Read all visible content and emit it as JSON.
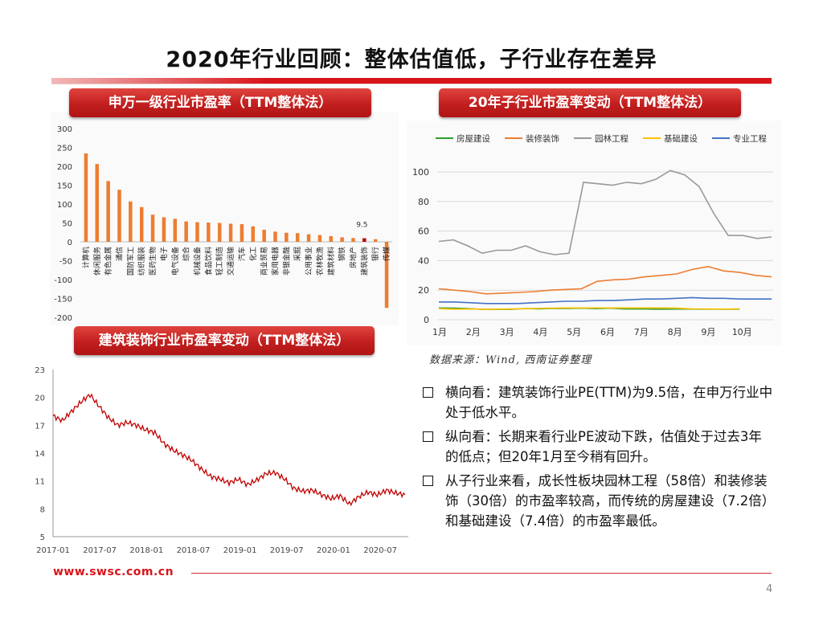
{
  "slide": {
    "title": "2020年行业回顾：整体估值低，子行业存在差异",
    "page_number": "4",
    "footer_url": "www.swsc.com.cn",
    "accent_color": "#d8141b"
  },
  "panels": {
    "industry_pe_label": "申万一级行业市盈率（TTM整体法）",
    "sub_industry_label": "20年子行业市盈率变动（TTM整体法）",
    "construction_pe_label": "建筑装饰行业市盈率变动（TTM整体法）"
  },
  "source_note": "数据来源：Wind, 西南证券整理",
  "bullets": [
    "横向看：建筑装饰行业PE(TTM)为9.5倍，在申万行业中处于低水平。",
    "纵向看：长期来看行业PE波动下跌，估值处于过去3年的低点；但20年1月至今稍有回升。",
    "从子行业来看，成长性板块园林工程（58倍）和装修装饰（30倍）的市盈率较高，而传统的房屋建设（7.2倍）和基础建设（7.4倍）的市盈率最低。"
  ],
  "chart_data": [
    {
      "type": "bar",
      "title": "申万一级行业市盈率（TTM整体法）",
      "categories": [
        "计算机",
        "休闲服务",
        "有色金属",
        "通信",
        "国防军工",
        "纺织服装",
        "医药生物",
        "电子",
        "电气设备",
        "综合",
        "机械设备",
        "食品饮料",
        "轻工制造",
        "交通运输",
        "汽车",
        "化工",
        "商业贸易",
        "家用电器",
        "非银金融",
        "采掘",
        "公用事业",
        "农林牧渔",
        "建筑材料",
        "钢铁",
        "房地产",
        "建筑装饰",
        "银行",
        "传媒"
      ],
      "values": [
        234,
        206,
        161,
        138,
        107,
        92,
        72,
        65,
        61,
        54,
        52,
        51,
        50,
        48,
        47,
        41,
        32,
        27,
        24,
        23,
        20,
        18,
        15,
        12,
        10,
        9.5,
        7,
        -175
      ],
      "highlight_category": "建筑装饰",
      "highlight_label": "9.5",
      "ylim": [
        -200,
        300
      ],
      "yticks": [
        300,
        250,
        200,
        150,
        100,
        50,
        0,
        -50,
        -100,
        -150,
        -200
      ],
      "bar_color": "#ed7d31",
      "highlight_color": "#c00000"
    },
    {
      "type": "line",
      "title": "20年子行业市盈率变动（TTM整体法）",
      "x_ticks": [
        "1月",
        "2月",
        "3月",
        "4月",
        "5月",
        "6月",
        "7月",
        "8月",
        "9月",
        "10月"
      ],
      "ylim": [
        0,
        100
      ],
      "yticks": [
        0,
        20,
        40,
        60,
        80,
        100
      ],
      "series": [
        {
          "name": "房屋建设",
          "color": "#2ca02c",
          "values": [
            8,
            7.8,
            7.6,
            7.0,
            7.0,
            7.0,
            7.6,
            7.4,
            7.7,
            7.6,
            7.8,
            7.5,
            7.8,
            7.3,
            7.4,
            7.2,
            7.2,
            7.3,
            7.2,
            7.2,
            7.1,
            7.2
          ]
        },
        {
          "name": "装修装饰",
          "color": "#ed7d31",
          "values": [
            21,
            20,
            19,
            17.5,
            18,
            18.5,
            19,
            20,
            20.5,
            21,
            26,
            27,
            27.5,
            29,
            30,
            31,
            34,
            36,
            33,
            32,
            30,
            29
          ]
        },
        {
          "name": "园林工程",
          "color": "#999999",
          "values": [
            53,
            54,
            50,
            45,
            47,
            47,
            50,
            46,
            44,
            45,
            93,
            92,
            91,
            93,
            92,
            95,
            101,
            98,
            90,
            72,
            57,
            57,
            55,
            56
          ]
        },
        {
          "name": "基础建设",
          "color": "#ffc000",
          "values": [
            7.5,
            7.2,
            7.3,
            7.0,
            7.2,
            7.4,
            7.6,
            7.8,
            8.0,
            8.0,
            8.0,
            8.0,
            8.0,
            8.0,
            8.0,
            7.8,
            7.4,
            7.3,
            7.2,
            7.4
          ]
        },
        {
          "name": "专业工程",
          "color": "#4472c4",
          "values": [
            12,
            12,
            11.5,
            11,
            11,
            11,
            11.5,
            12,
            12.5,
            12.5,
            13,
            13,
            13.5,
            14,
            14,
            14.5,
            15,
            14.5,
            14.5,
            14,
            14,
            14
          ]
        }
      ]
    },
    {
      "type": "line",
      "title": "建筑装饰行业市盈率变动（TTM整体法）",
      "x_ticks": [
        "2017-01",
        "2017-07",
        "2018-01",
        "2018-07",
        "2019-01",
        "2019-07",
        "2020-01",
        "2020-07"
      ],
      "ylim": [
        5,
        23
      ],
      "yticks": [
        23,
        20,
        17,
        14,
        11,
        8,
        5
      ],
      "series": [
        {
          "name": "建筑装饰PE",
          "color": "#c00000",
          "values": [
            18.0,
            17.5,
            18.5,
            19.5,
            20.3,
            19.0,
            17.8,
            17.0,
            17.3,
            17.0,
            16.5,
            16.2,
            15.0,
            14.3,
            13.8,
            13.2,
            12.3,
            11.5,
            11.2,
            10.8,
            11.2,
            10.6,
            11.1,
            11.8,
            11.9,
            11.2,
            10.2,
            9.9,
            10.0,
            9.5,
            9.1,
            9.4,
            8.5,
            9.3,
            9.8,
            9.5,
            10.0,
            9.7,
            9.5
          ]
        }
      ]
    }
  ]
}
